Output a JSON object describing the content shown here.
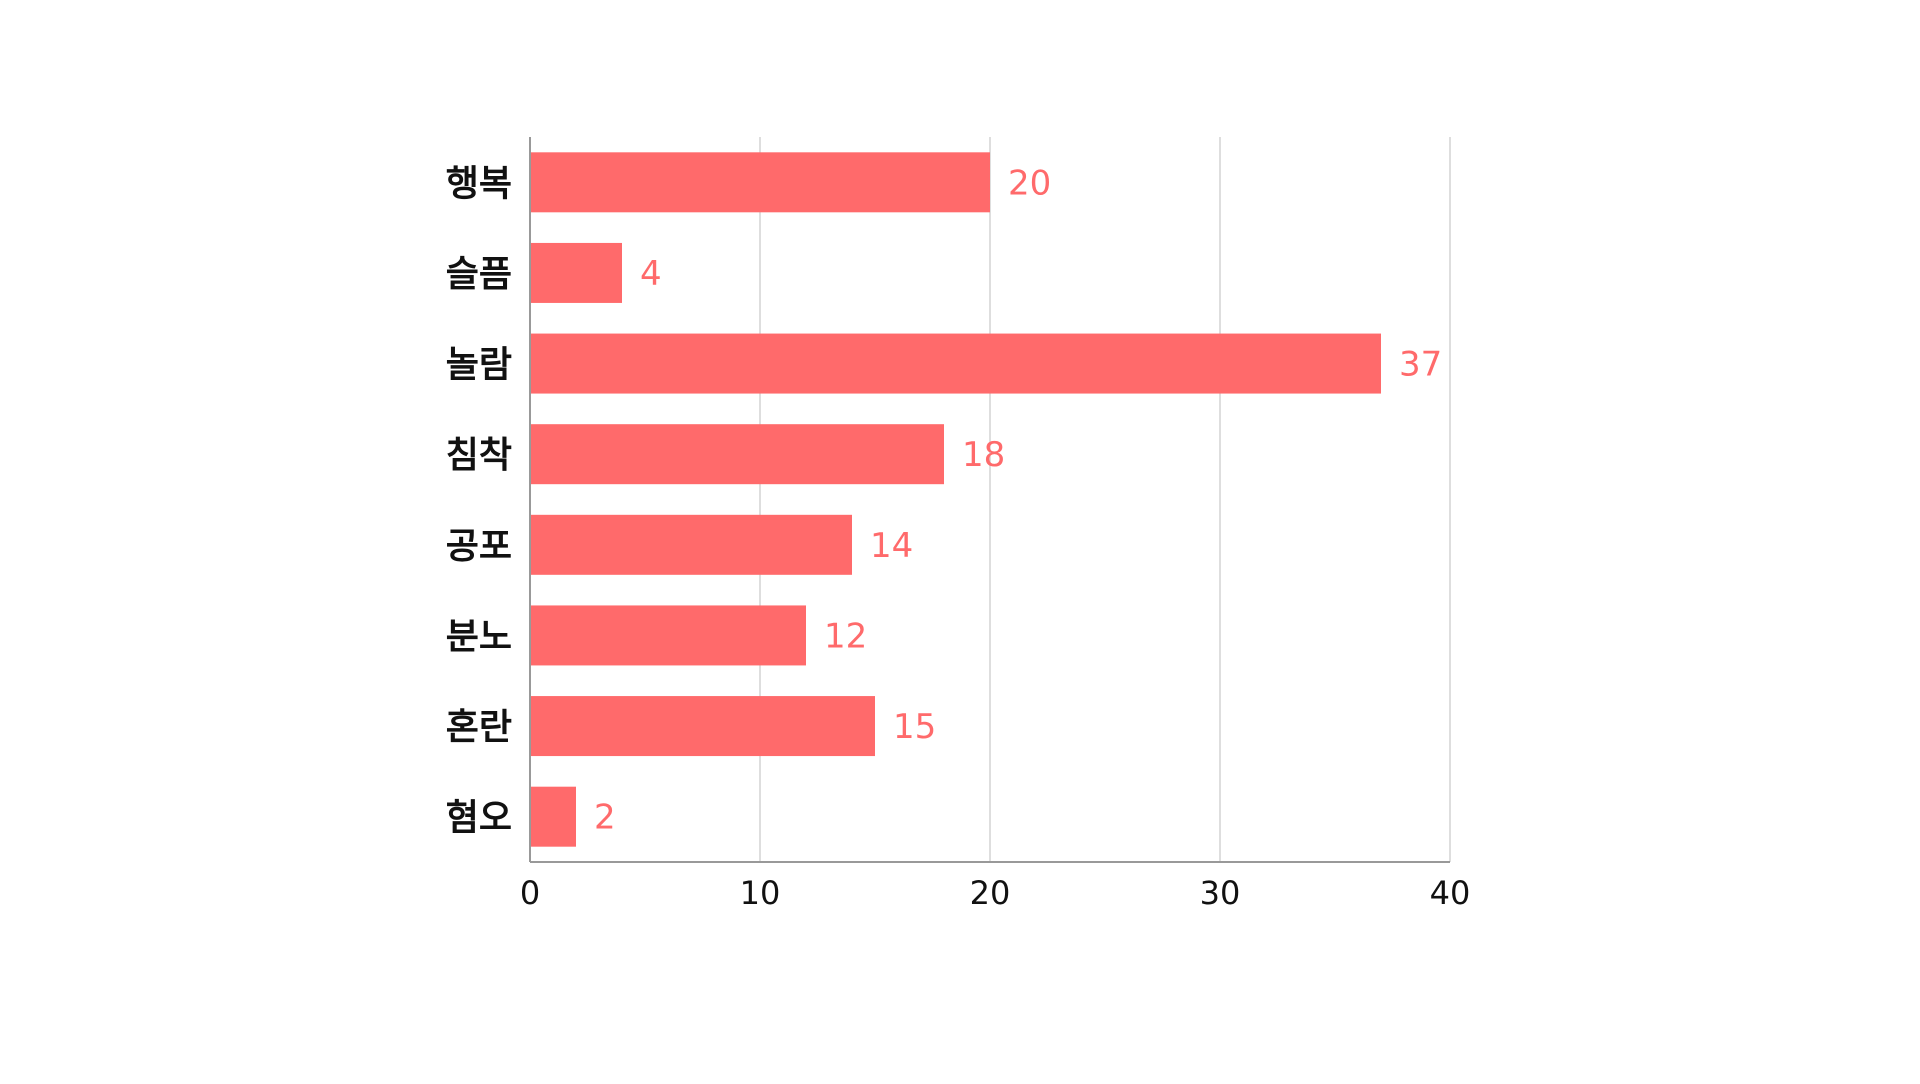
{
  "chart_data": {
    "type": "bar",
    "orientation": "horizontal",
    "categories": [
      "행복",
      "슬픔",
      "놀람",
      "침착",
      "공포",
      "분노",
      "혼란",
      "혐오"
    ],
    "values": [
      20,
      4,
      37,
      18,
      14,
      12,
      15,
      2
    ],
    "xlim": [
      0,
      40
    ],
    "xticks": [
      0,
      10,
      20,
      30,
      40
    ],
    "grid": "vertical",
    "data_labels": true,
    "colors": {
      "bar": "#ff6a6b",
      "value_label": "#ff6a6b",
      "grid": "#d3d3d3",
      "axis": "#999999",
      "text": "#111111"
    }
  }
}
